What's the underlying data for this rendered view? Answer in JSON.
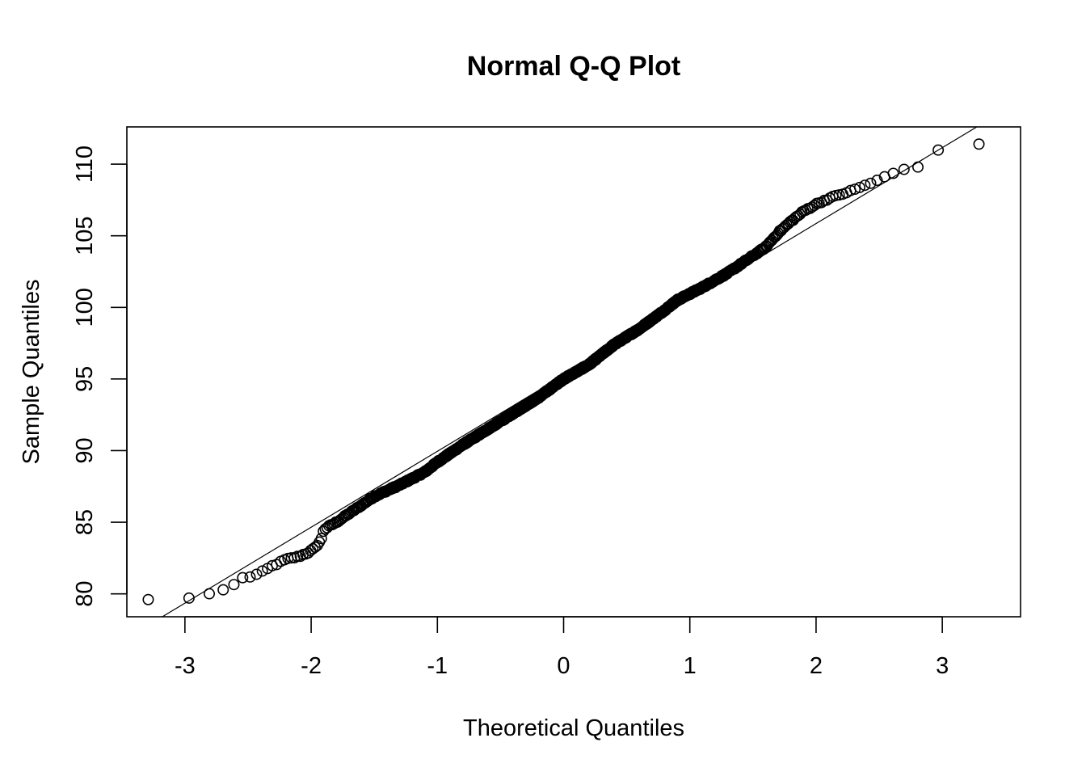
{
  "chart_data": {
    "type": "scatter",
    "title": "Normal Q-Q Plot",
    "xlabel": "Theoretical Quantiles",
    "ylabel": "Sample Quantiles",
    "xlim": [
      -3.46,
      3.62
    ],
    "ylim": [
      78.4,
      112.6
    ],
    "x_ticks": [
      -3,
      -2,
      -1,
      0,
      1,
      2,
      3
    ],
    "y_ticks": [
      80,
      85,
      90,
      95,
      100,
      105,
      110
    ],
    "x_tick_labels": [
      "-3",
      "-2",
      "-1",
      "0",
      "1",
      "2",
      "3"
    ],
    "y_tick_labels": [
      "80",
      "85",
      "90",
      "95",
      "100",
      "105",
      "110"
    ],
    "grid": false,
    "legend": "none",
    "reference_line": {
      "slope": 5.3,
      "intercept": 95.25
    },
    "sample_size": 1000,
    "anchor_points": [
      [
        -3.29,
        79.6
      ],
      [
        -2.97,
        79.7
      ],
      [
        -2.81,
        80.0
      ],
      [
        -2.69,
        80.3
      ],
      [
        -2.6,
        80.7
      ],
      [
        -2.53,
        81.2
      ],
      [
        -2.47,
        81.2
      ],
      [
        -2.42,
        81.4
      ],
      [
        -2.37,
        81.6
      ],
      [
        -2.32,
        81.9
      ],
      [
        -2.27,
        82.1
      ],
      [
        -2.2,
        82.4
      ],
      [
        -2.1,
        82.6
      ],
      [
        -2.02,
        82.9
      ],
      [
        -1.97,
        83.2
      ],
      [
        -1.92,
        83.8
      ],
      [
        -1.9,
        84.5
      ],
      [
        -1.8,
        85.0
      ],
      [
        -1.7,
        85.6
      ],
      [
        -1.6,
        86.2
      ],
      [
        -1.5,
        86.8
      ],
      [
        -1.3,
        87.6
      ],
      [
        -1.1,
        88.5
      ],
      [
        -1.0,
        89.2
      ],
      [
        -0.8,
        90.4
      ],
      [
        -0.6,
        91.5
      ],
      [
        -0.4,
        92.6
      ],
      [
        -0.2,
        93.7
      ],
      [
        0.0,
        95.0
      ],
      [
        0.2,
        96.0
      ],
      [
        0.4,
        97.4
      ],
      [
        0.6,
        98.5
      ],
      [
        0.8,
        99.8
      ],
      [
        0.9,
        100.5
      ],
      [
        1.1,
        101.4
      ],
      [
        1.3,
        102.4
      ],
      [
        1.5,
        103.6
      ],
      [
        1.6,
        104.2
      ],
      [
        1.7,
        105.2
      ],
      [
        1.8,
        106.0
      ],
      [
        1.9,
        106.7
      ],
      [
        2.0,
        107.2
      ],
      [
        2.1,
        107.6
      ],
      [
        2.2,
        107.9
      ],
      [
        2.3,
        108.2
      ],
      [
        2.38,
        108.5
      ],
      [
        2.47,
        108.8
      ],
      [
        2.57,
        109.2
      ],
      [
        2.65,
        109.5
      ],
      [
        2.72,
        109.7
      ],
      [
        2.81,
        109.8
      ],
      [
        2.97,
        111.0
      ],
      [
        3.29,
        111.4
      ]
    ]
  }
}
